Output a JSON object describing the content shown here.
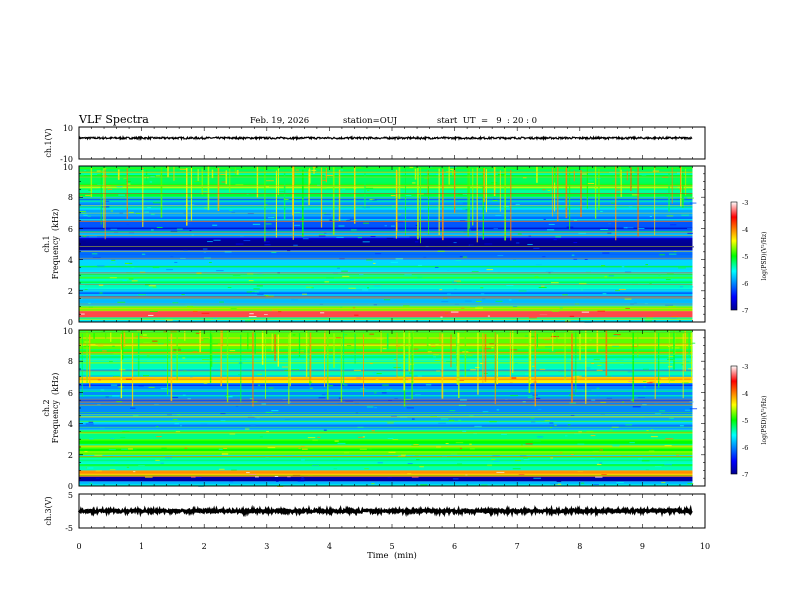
{
  "header": {
    "title": "VLF Spectra",
    "date": "Feb. 19, 2026",
    "station": "station=OUJ",
    "start_ut": "start  UT  =   9  : 20 : 0"
  },
  "chart_data": [
    {
      "type": "line",
      "id": "ch1-waveform",
      "ylabel": "ch.1(V)",
      "ylim": [
        -10,
        10
      ],
      "ytick_labels": [
        "-10",
        "10"
      ],
      "xlim": [
        0,
        10
      ],
      "data_extent_x": [
        0,
        9.8
      ],
      "description": "Noise waveform centred near 3 V with small amplitude (about 2.5 to 3.8 V)",
      "center_value": 3.1,
      "amplitude": 0.6
    },
    {
      "type": "heatmap",
      "id": "ch1-spectrogram",
      "ylabel_line1": "ch.1",
      "ylabel_line2": "Frequency  (kHz)",
      "ylim": [
        0,
        10
      ],
      "ytick_labels": [
        "0",
        "2",
        "4",
        "6",
        "8",
        "10"
      ],
      "xlim": [
        0,
        10
      ],
      "data_extent_x": [
        0,
        9.8
      ],
      "colorbar": {
        "label": "log(PSD)(V²/Hz)",
        "range": [
          -7,
          -3
        ],
        "tick_labels": [
          "-3",
          "-4",
          "-5",
          "-6",
          "-7"
        ]
      },
      "bands": [
        {
          "from": 0.0,
          "to": 0.3,
          "level": -5.5
        },
        {
          "from": 0.3,
          "to": 0.7,
          "level": -3.4
        },
        {
          "from": 0.7,
          "to": 1.0,
          "level": -4.8
        },
        {
          "from": 1.0,
          "to": 2.0,
          "level": -5.8
        },
        {
          "from": 2.0,
          "to": 3.0,
          "level": -5.4
        },
        {
          "from": 3.0,
          "to": 4.0,
          "level": -5.7
        },
        {
          "from": 4.0,
          "to": 4.6,
          "level": -6.1
        },
        {
          "from": 4.6,
          "to": 5.4,
          "level": -6.95
        },
        {
          "from": 5.4,
          "to": 6.8,
          "level": -6.2
        },
        {
          "from": 6.8,
          "to": 8.0,
          "level": -5.9
        },
        {
          "from": 8.0,
          "to": 10.0,
          "level": -5.2
        }
      ]
    },
    {
      "type": "heatmap",
      "id": "ch2-spectrogram",
      "ylabel_line1": "ch.2",
      "ylabel_line2": "Frequency  (kHz)",
      "ylim": [
        0,
        10
      ],
      "ytick_labels": [
        "0",
        "2",
        "4",
        "6",
        "8",
        "10"
      ],
      "xlim": [
        0,
        10
      ],
      "data_extent_x": [
        0,
        9.8
      ],
      "colorbar": {
        "label": "log(PSD)(V²/Hz)",
        "range": [
          -7,
          -3
        ],
        "tick_labels": [
          "-3",
          "-4",
          "-5",
          "-6",
          "-7"
        ]
      },
      "bands": [
        {
          "from": 0.0,
          "to": 0.3,
          "level": -5.6
        },
        {
          "from": 0.3,
          "to": 0.6,
          "level": -6.9
        },
        {
          "from": 0.6,
          "to": 1.0,
          "level": -4.0
        },
        {
          "from": 1.0,
          "to": 2.0,
          "level": -5.4
        },
        {
          "from": 2.0,
          "to": 3.0,
          "level": -5.0
        },
        {
          "from": 3.0,
          "to": 3.6,
          "level": -5.3
        },
        {
          "from": 3.6,
          "to": 4.4,
          "level": -5.9
        },
        {
          "from": 4.4,
          "to": 6.6,
          "level": -6.0
        },
        {
          "from": 6.6,
          "to": 7.0,
          "level": -4.4
        },
        {
          "from": 7.0,
          "to": 8.5,
          "level": -5.4
        },
        {
          "from": 8.5,
          "to": 10.0,
          "level": -4.8
        }
      ]
    },
    {
      "type": "line",
      "id": "ch3-waveform",
      "ylabel": "ch.3(V)",
      "ylim": [
        -5,
        5
      ],
      "ytick_labels": [
        "5",
        "-5"
      ],
      "xlim": [
        0,
        10
      ],
      "data_extent_x": [
        0,
        9.8
      ],
      "description": "Flat thick trace near 0 V",
      "center_value": 0,
      "amplitude": 0.4,
      "xlabel": "Time  (min)",
      "xtick_labels": [
        "0",
        "1",
        "2",
        "3",
        "4",
        "5",
        "6",
        "7",
        "8",
        "9",
        "10"
      ]
    }
  ]
}
